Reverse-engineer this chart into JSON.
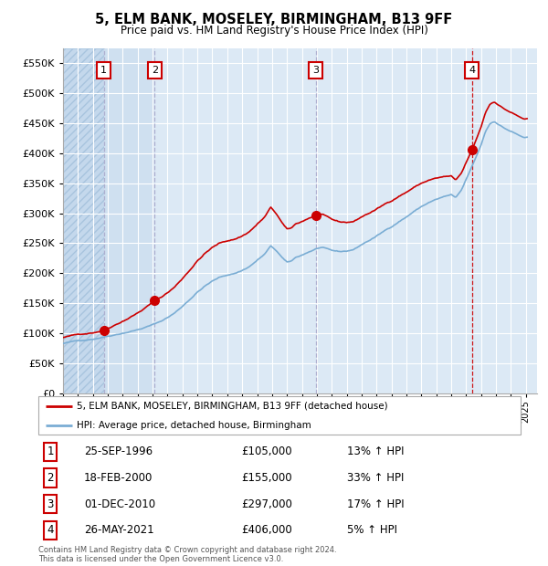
{
  "title": "5, ELM BANK, MOSELEY, BIRMINGHAM, B13 9FF",
  "subtitle": "Price paid vs. HM Land Registry's House Price Index (HPI)",
  "legend_red": "5, ELM BANK, MOSELEY, BIRMINGHAM, B13 9FF (detached house)",
  "legend_blue": "HPI: Average price, detached house, Birmingham",
  "footer": "Contains HM Land Registry data © Crown copyright and database right 2024.\nThis data is licensed under the Open Government Licence v3.0.",
  "sales": [
    {
      "num": 1,
      "date": "25-SEP-1996",
      "price": 105000,
      "pct": "13%",
      "dir": "↑"
    },
    {
      "num": 2,
      "date": "18-FEB-2000",
      "price": 155000,
      "pct": "33%",
      "dir": "↑"
    },
    {
      "num": 3,
      "date": "01-DEC-2010",
      "price": 297000,
      "pct": "17%",
      "dir": "↑"
    },
    {
      "num": 4,
      "date": "26-MAY-2021",
      "price": 406000,
      "pct": "5%",
      "dir": "↑"
    }
  ],
  "sale_dates_decimal": [
    1996.73,
    2000.13,
    2010.92,
    2021.4
  ],
  "sale_prices": [
    105000,
    155000,
    297000,
    406000
  ],
  "ylim": [
    0,
    575000
  ],
  "yticks": [
    0,
    50000,
    100000,
    150000,
    200000,
    250000,
    300000,
    350000,
    400000,
    450000,
    500000,
    550000
  ],
  "xlim_start": 1994.0,
  "xlim_end": 2025.75,
  "bg_color": "#dce9f5",
  "grid_color": "#ffffff",
  "red_color": "#cc0000",
  "blue_color": "#7aadd4",
  "vline_color_sold": "#bbbbcc",
  "vline_color_last": "#cc0000",
  "hatch_left_color": "#c4d8ec",
  "sale_region_color": "#cfe0f0"
}
